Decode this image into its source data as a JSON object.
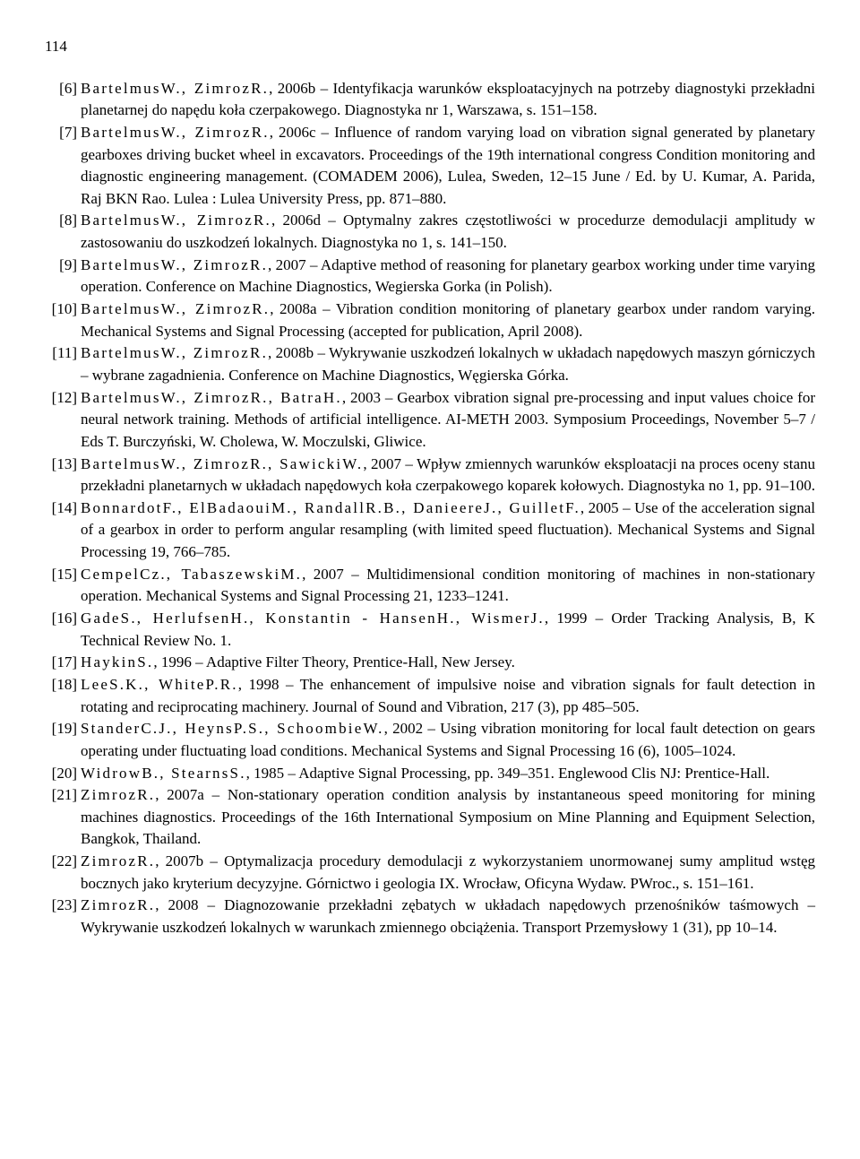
{
  "page_number": "114",
  "references": [
    {
      "num": "[6]",
      "authors": "B a r t e l m u s W., Z i m r o z R.",
      "rest": ", 2006b – Identyfikacja warunków eksploatacyjnych na potrzeby diagnostyki przekładni planetarnej do napędu koła czerpakowego. Diagnostyka nr 1, Warszawa, s. 151–158."
    },
    {
      "num": "[7]",
      "authors": "B a r t e l m u s W., Z i m r o z R.",
      "rest": ", 2006c – Influence of random varying load on vibration signal generated by planetary gearboxes driving bucket wheel in excavators. Proceedings of the 19th international congress Condition monitoring and diagnostic engineering management. (COMADEM 2006), Lulea, Sweden, 12–15 June / Ed. by U. Kumar, A. Parida, Raj BKN Rao. Lulea : Lulea University Press, pp. 871–880."
    },
    {
      "num": "[8]",
      "authors": "B a r t e l m u s W., Z i m r o z R.",
      "rest": ", 2006d – Optymalny zakres częstotliwości w procedurze demodulacji amplitudy w zastosowaniu do uszkodzeń lokalnych. Diagnostyka no 1, s. 141–150."
    },
    {
      "num": "[9]",
      "authors": "B a r t e l m u s W., Z i m r o z R.",
      "rest": ", 2007 – Adaptive method of reasoning for planetary gearbox working under time varying operation. Conference on Machine Diagnostics, Wegierska Gorka (in Polish)."
    },
    {
      "num": "[10]",
      "authors": "B a r t e l m u s W., Z i m r o z R.",
      "rest": ", 2008a – Vibration condition monitoring of planetary gearbox under random varying. Mechanical Systems and Signal Processing (accepted for publication, April 2008)."
    },
    {
      "num": "[11]",
      "authors": "B a r t e l m u s W., Z i m r o z R.",
      "rest": ", 2008b – Wykrywanie uszkodzeń lokalnych w układach napędowych maszyn górniczych – wybrane zagadnienia. Conference on Machine Diagnostics, Węgierska Górka."
    },
    {
      "num": "[12]",
      "authors": "B a r t e l m u s W., Z i m r o z R., B a t r a H.",
      "rest": ", 2003 – Gearbox vibration signal pre-processing and input values choice for neural network training. Methods of artificial intelligence. AI-METH 2003. Symposium Proceedings, November 5–7 / Eds T. Burczyński, W. Cholewa, W. Moczulski, Gliwice."
    },
    {
      "num": "[13]",
      "authors": "B a r t e l m u s W., Z i m r o z R., S a w i c k i W.",
      "rest": ", 2007 – Wpływ zmiennych warunków eksploatacji na proces oceny stanu przekładni planetarnych w układach napędowych koła czerpakowego koparek kołowych. Diagnostyka no 1, pp. 91–100."
    },
    {
      "num": "[14]",
      "authors": "B o n n a r d o t F., E l B a d a o u i M., R a n d a l l R.B., D a n i e e r e J., G u i l l e t F.",
      "rest": ", 2005 – Use of the acceleration signal of a gearbox in order to perform angular resampling (with limited speed fluctuation). Mechanical Systems and Signal Processing 19, 766–785."
    },
    {
      "num": "[15]",
      "authors": "C e m p e l Cz., T a b a s z e w s k i M.",
      "rest": ", 2007 – Multidimensional condition monitoring of machines in non-stationary operation. Mechanical Systems and Signal Processing 21, 1233–1241."
    },
    {
      "num": "[16]",
      "authors": "G a d e S., H e r l u f s e n H., K o n s t a n t i n - H a n s e n H., W i s m e r J.",
      "rest": ", 1999 – Order Tracking Analysis, B, K Technical Review No. 1."
    },
    {
      "num": "[17]",
      "authors": "H a y k i n S.",
      "rest": ", 1996 – Adaptive Filter Theory, Prentice-Hall, New Jersey."
    },
    {
      "num": "[18]",
      "authors": "L e e S.K., W h i t e P.R.",
      "rest": ", 1998 – The enhancement of impulsive noise and vibration signals for fault detection in rotating and reciprocating machinery. Journal of Sound and Vibration, 217 (3), pp 485–505."
    },
    {
      "num": "[19]",
      "authors": "S t a n d e r C.J., H e y n s P.S., S c h o o m b i e W.",
      "rest": ", 2002 – Using vibration monitoring for local fault detection on gears operating under fluctuating load conditions. Mechanical Systems and Signal Processing 16 (6), 1005–1024."
    },
    {
      "num": "[20]",
      "authors": "W i d r o w B., S t e a r n s S.",
      "rest": ", 1985 – Adaptive Signal Processing, pp. 349–351. Englewood Clis NJ: Prentice-Hall."
    },
    {
      "num": "[21]",
      "authors": "Z i m r o z R.",
      "rest": ", 2007a – Non-stationary operation condition analysis by instantaneous speed monitoring for mining machines diagnostics. Proceedings of the 16th International Symposium on Mine Planning and Equipment Selection, Bangkok, Thailand."
    },
    {
      "num": "[22]",
      "authors": "Z i m r o z R.",
      "rest": ", 2007b – Optymalizacja procedury demodulacji z wykorzystaniem unormowanej sumy amplitud wstęg bocznych jako kryterium decyzyjne. Górnictwo i geologia IX. Wrocław, Oficyna Wydaw. PWroc., s. 151–161."
    },
    {
      "num": "[23]",
      "authors": "Z i m r o z R.",
      "rest": ", 2008 – Diagnozowanie przekładni zębatych w układach napędowych przenośników taśmowych – Wykrywanie uszkodzeń lokalnych w warunkach zmiennego obciążenia. Transport Przemysłowy 1 (31), pp 10–14."
    }
  ]
}
